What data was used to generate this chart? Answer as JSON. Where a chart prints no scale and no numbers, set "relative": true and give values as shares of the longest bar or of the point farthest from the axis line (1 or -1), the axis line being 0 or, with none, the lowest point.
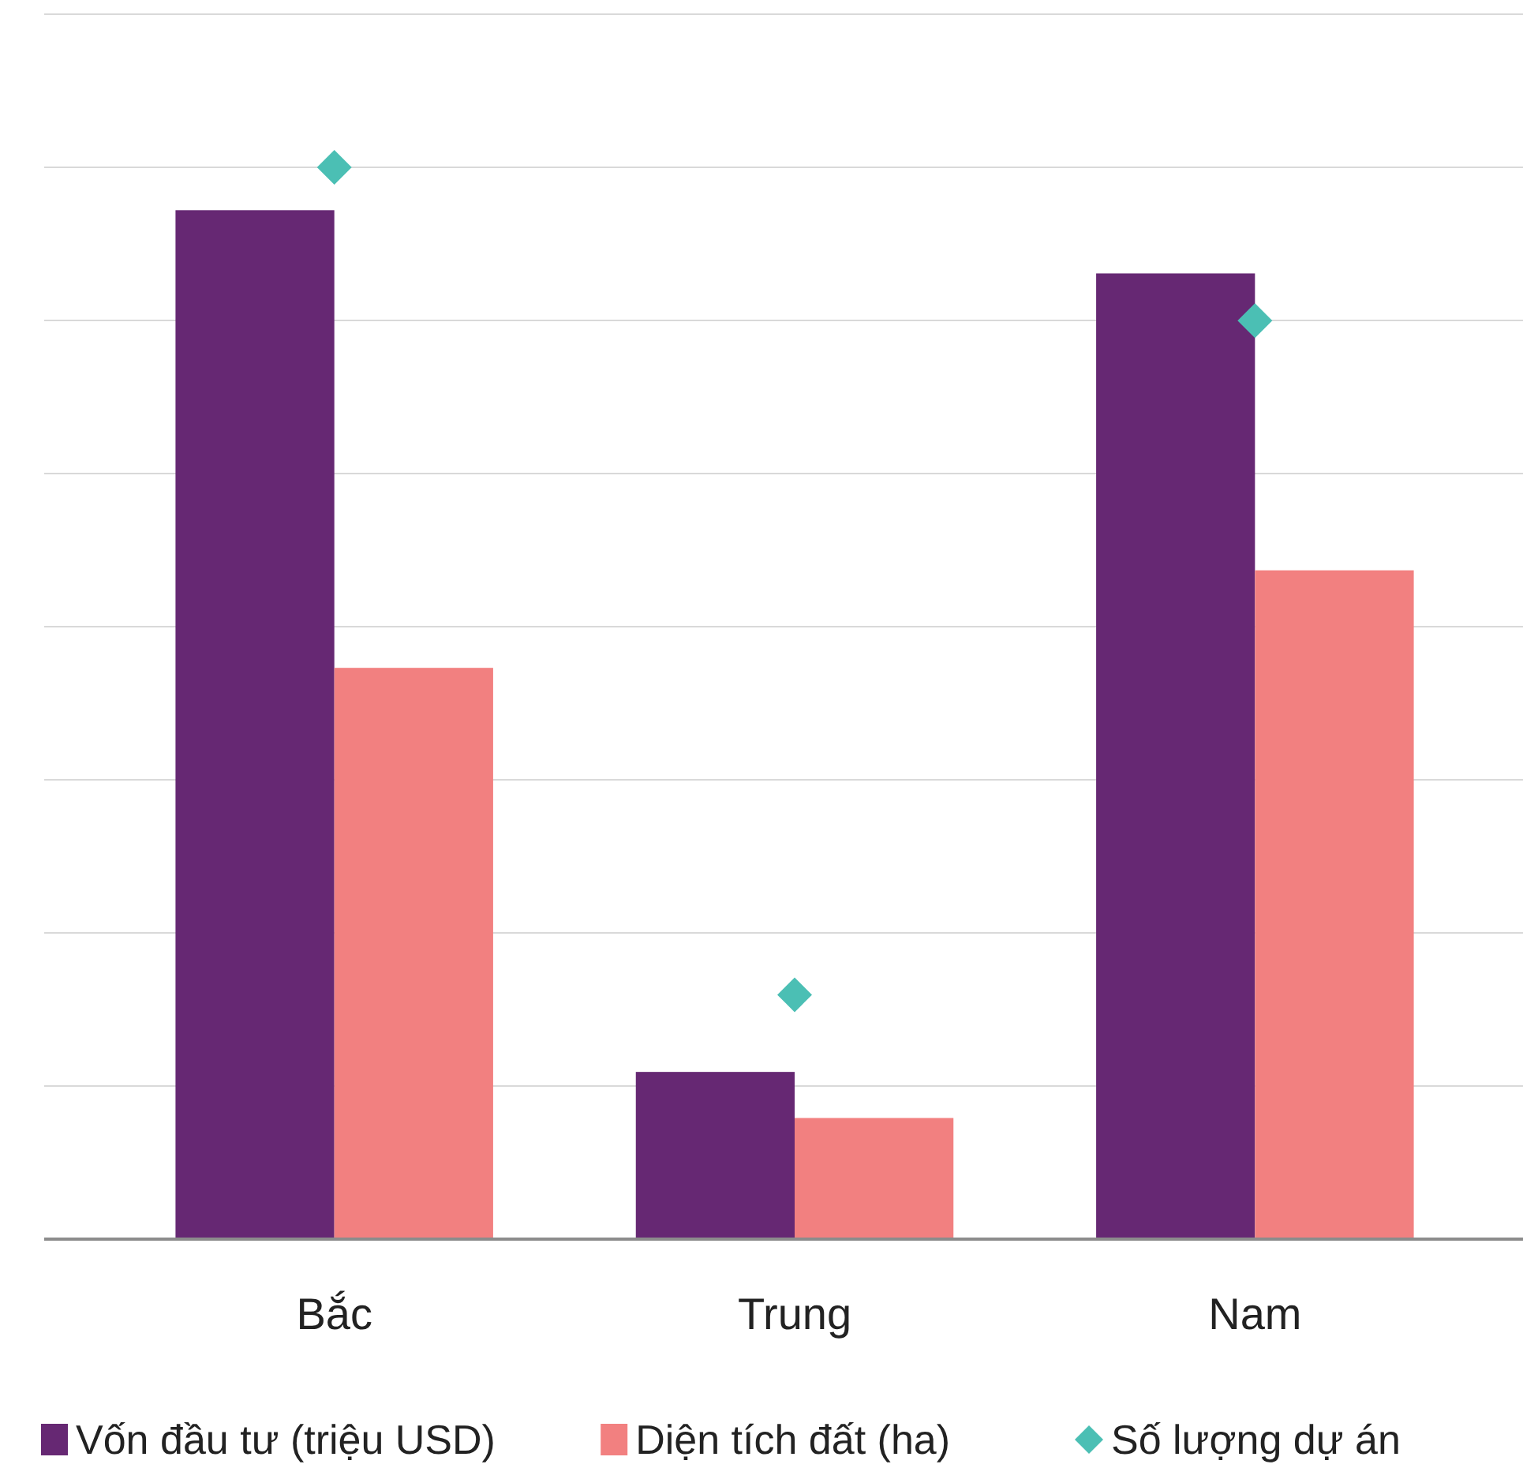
{
  "chart_data": {
    "type": "bar",
    "relative": true,
    "categories": [
      "Bắc",
      "Trung",
      "Nam"
    ],
    "grid": "y",
    "legend": "bottom",
    "series": [
      {
        "name": "Vốn đầu tư (triệu USD)",
        "color": "#662873",
        "values": [
          0.96,
          0.156,
          0.901
        ]
      },
      {
        "name": "Diện tích đất (ha)",
        "color": "#f28080",
        "values": [
          0.533,
          0.113,
          0.624
        ]
      },
      {
        "name": "Số lượng dự án",
        "color": "#4bbfb4",
        "type": "scatter",
        "marker": "diamond",
        "values": [
          1,
          0.228,
          0.857
        ]
      }
    ]
  }
}
